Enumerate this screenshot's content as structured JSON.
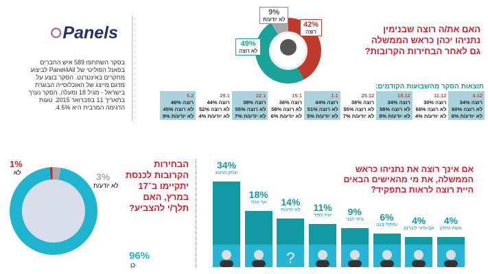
{
  "logo": {
    "text": "Panels"
  },
  "about": "בסקר השתתפו 589 איש החברים בפאנל הפוליטי של Panel4All לביצוע מחקרים באינטרנט. הסקר בוצע על מדגם מייצג של האוכלוסייה הבוגרת בישראל - מגיל 18 ומעלה. הסקר נערך בתאריך 11 בפברואר 2015. טעות הדגימה המרבית היא 4.5%.",
  "q1": {
    "title": "האם את/ה רוצה שבנימין נתניהו יכהן כראש הממשלה גם לאחר הבחירות הקרובות?",
    "slices": [
      {
        "label": "רוצה",
        "value": 42,
        "pct": "42%",
        "color": "#c0392b"
      },
      {
        "label": "לא רוצה",
        "value": 49,
        "pct": "49%",
        "color": "#1aa39b"
      },
      {
        "label": "לא יודע/ת",
        "value": 9,
        "pct": "9%",
        "color": "#a7a9ac"
      }
    ]
  },
  "history": {
    "title": "תוצאות הסקר מהשבועות הקודמים:",
    "row_labels": {
      "yes": "רוצה",
      "no": "לא רוצה",
      "dk": "לא יודע/ת"
    },
    "columns": [
      {
        "date": "4.12",
        "yes": "34%",
        "no": "60%",
        "dk": "6%"
      },
      {
        "date": "11.12",
        "yes": "30%",
        "no": "66%",
        "dk": "4%"
      },
      {
        "date": "18.12",
        "yes": "34%",
        "no": "58%",
        "dk": "8%"
      },
      {
        "date": "25.12",
        "yes": "38%",
        "no": "55%",
        "dk": "7%"
      },
      {
        "date": "1.1",
        "yes": "44%",
        "no": "51%",
        "dk": "5%"
      },
      {
        "date": "15.1",
        "yes": "36%",
        "no": "58%",
        "dk": "6%"
      },
      {
        "date": "22.1",
        "yes": "38%",
        "no": "55%",
        "dk": "7%"
      },
      {
        "date": "29.1",
        "yes": "44%",
        "no": "52%",
        "dk": "4%"
      },
      {
        "date": "5.2",
        "yes": "46%",
        "no": "45%",
        "dk": "9%"
      }
    ]
  },
  "q2": {
    "title": "הבחירות הקרובות לכנסת יתקיימו ב־17 במרץ, האם תלך/י להצביע?",
    "slices": [
      {
        "label": "כן",
        "value": 96,
        "pct": "96%",
        "color": "#1fb5d0"
      },
      {
        "label": "לא",
        "value": 1,
        "pct": "1%",
        "color": "#d81f2a"
      },
      {
        "label": "לא יודע/ת",
        "value": 3,
        "pct": "3%",
        "color": "#a7a9ac"
      }
    ]
  },
  "chart_data": {
    "type": "bar",
    "title": "אם אינך רוצה את נתניהו כראש הממשלה, את מי מהאישים הבאים היית רוצה לראות בתפקיד?",
    "categories": [
      "יצחק הרצוג",
      "אף אחד",
      "לא יודע/ת",
      "יאיר לפיד",
      "ציפי לבני",
      "נפתלי בנט",
      "אביגדור ליברמן",
      "משה כחלון"
    ],
    "values": [
      34,
      18,
      14,
      11,
      9,
      6,
      4,
      4
    ],
    "labels": [
      "34%",
      "18%",
      "14%",
      "11%",
      "9%",
      "6%",
      "4%",
      "4%"
    ],
    "ylim": [
      0,
      34
    ]
  }
}
